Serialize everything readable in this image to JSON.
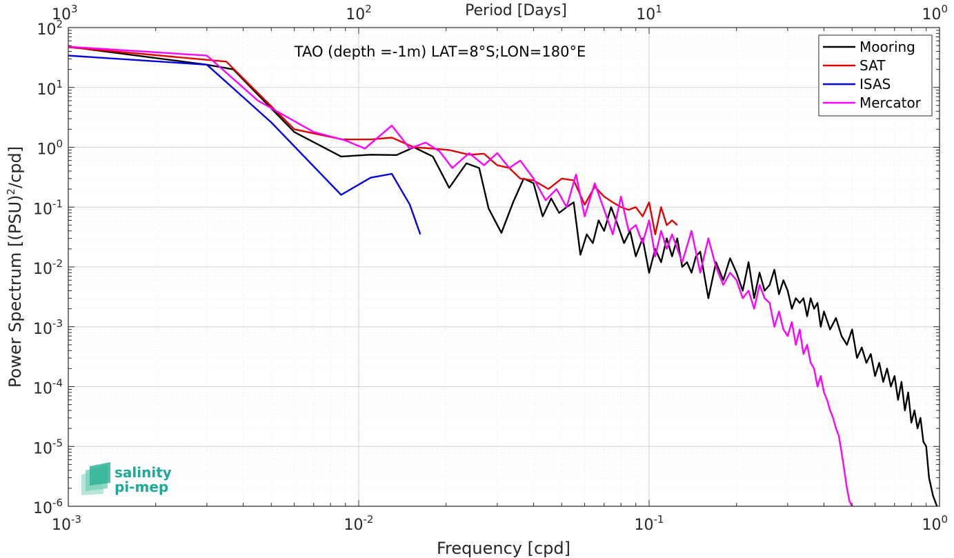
{
  "chart_data": {
    "type": "line",
    "x_scale": "log",
    "y_scale": "log",
    "xlim": [
      0.001,
      1
    ],
    "ylim": [
      1e-06,
      100
    ],
    "grid": true,
    "minor_grid": true,
    "xlabel": "Frequency [cpd]",
    "ylabel_main": "Power Spectrum [(PSU)",
    "ylabel_sup": "2",
    "ylabel_tail": "/cpd]",
    "top_axis_label": "Period [Days]",
    "annotation": "TAO (depth =-1m) LAT=8°S;LON=180°E",
    "legend_position": "top-right",
    "x_ticks": [
      {
        "value": 0.001,
        "base": "10",
        "exp": "-3"
      },
      {
        "value": 0.01,
        "base": "10",
        "exp": "-2"
      },
      {
        "value": 0.1,
        "base": "10",
        "exp": "-1"
      },
      {
        "value": 1,
        "base": "10",
        "exp": "0"
      }
    ],
    "top_ticks": [
      {
        "value": 0.001,
        "base": "10",
        "exp": "3"
      },
      {
        "value": 0.01,
        "base": "10",
        "exp": "2"
      },
      {
        "value": 0.1,
        "base": "10",
        "exp": "1"
      },
      {
        "value": 1,
        "base": "10",
        "exp": "0"
      }
    ],
    "y_ticks": [
      {
        "value": 1e-06,
        "base": "10",
        "exp": "-6"
      },
      {
        "value": 1e-05,
        "base": "10",
        "exp": "-5"
      },
      {
        "value": 0.0001,
        "base": "10",
        "exp": "-4"
      },
      {
        "value": 0.001,
        "base": "10",
        "exp": "-3"
      },
      {
        "value": 0.01,
        "base": "10",
        "exp": "-2"
      },
      {
        "value": 0.1,
        "base": "10",
        "exp": "-1"
      },
      {
        "value": 1,
        "base": "10",
        "exp": "0"
      },
      {
        "value": 10,
        "base": "10",
        "exp": "1"
      },
      {
        "value": 100,
        "base": "10",
        "exp": "2"
      }
    ],
    "series": [
      {
        "name": "Mooring",
        "color": "#000000",
        "x": [
          0.001,
          0.003,
          0.0037,
          0.006,
          0.0087,
          0.011,
          0.0135,
          0.0155,
          0.018,
          0.0205,
          0.0235,
          0.026,
          0.028,
          0.031,
          0.034,
          0.037,
          0.04,
          0.043,
          0.046,
          0.049,
          0.052,
          0.055,
          0.058,
          0.061,
          0.064,
          0.067,
          0.07,
          0.074,
          0.078,
          0.082,
          0.086,
          0.09,
          0.095,
          0.1,
          0.105,
          0.11,
          0.115,
          0.12,
          0.125,
          0.13,
          0.135,
          0.14,
          0.145,
          0.15,
          0.16,
          0.17,
          0.18,
          0.19,
          0.2,
          0.21,
          0.22,
          0.23,
          0.24,
          0.25,
          0.26,
          0.27,
          0.28,
          0.29,
          0.3,
          0.31,
          0.32,
          0.33,
          0.34,
          0.35,
          0.36,
          0.37,
          0.38,
          0.39,
          0.4,
          0.42,
          0.44,
          0.46,
          0.48,
          0.5,
          0.52,
          0.54,
          0.56,
          0.58,
          0.6,
          0.62,
          0.64,
          0.66,
          0.68,
          0.7,
          0.72,
          0.74,
          0.76,
          0.78,
          0.8,
          0.82,
          0.84,
          0.86,
          0.88,
          0.9,
          0.92,
          0.95,
          0.98
        ],
        "y": [
          48,
          24,
          20,
          1.8,
          0.7,
          0.75,
          0.74,
          1.0,
          0.7,
          0.21,
          0.54,
          0.45,
          0.095,
          0.037,
          0.12,
          0.3,
          0.25,
          0.07,
          0.14,
          0.08,
          0.1,
          0.12,
          0.016,
          0.035,
          0.025,
          0.06,
          0.04,
          0.1,
          0.05,
          0.025,
          0.04,
          0.015,
          0.03,
          0.008,
          0.02,
          0.012,
          0.03,
          0.015,
          0.03,
          0.01,
          0.012,
          0.008,
          0.015,
          0.018,
          0.003,
          0.012,
          0.006,
          0.014,
          0.008,
          0.004,
          0.012,
          0.003,
          0.008,
          0.004,
          0.005,
          0.009,
          0.0035,
          0.006,
          0.004,
          0.002,
          0.003,
          0.0025,
          0.003,
          0.0015,
          0.003,
          0.002,
          0.0025,
          0.001,
          0.0018,
          0.0009,
          0.0014,
          0.0007,
          0.0005,
          0.0009,
          0.0003,
          0.00045,
          0.00025,
          0.00035,
          0.00015,
          0.00025,
          0.00012,
          0.0002,
          0.0001,
          0.00015,
          6e-05,
          0.00012,
          4e-05,
          8e-05,
          2.5e-05,
          4e-05,
          2e-05,
          3e-05,
          1.2e-05,
          1e-05,
          3e-06,
          1.5e-06,
          1e-06
        ]
      },
      {
        "name": "SAT",
        "color": "#e00000",
        "x": [
          0.001,
          0.0035,
          0.006,
          0.0088,
          0.011,
          0.013,
          0.0155,
          0.018,
          0.0205,
          0.024,
          0.027,
          0.03,
          0.033,
          0.036,
          0.04,
          0.045,
          0.05,
          0.055,
          0.06,
          0.065,
          0.07,
          0.075,
          0.08,
          0.085,
          0.09,
          0.095,
          0.1,
          0.105,
          0.11,
          0.115,
          0.12,
          0.125
        ],
        "y": [
          47,
          27,
          2.0,
          1.35,
          1.35,
          1.45,
          1.0,
          0.95,
          0.9,
          0.75,
          0.78,
          0.5,
          0.45,
          0.3,
          0.28,
          0.2,
          0.3,
          0.28,
          0.11,
          0.22,
          0.15,
          0.12,
          0.1,
          0.09,
          0.1,
          0.07,
          0.12,
          0.035,
          0.1,
          0.05,
          0.06,
          0.05
        ]
      },
      {
        "name": "ISAS",
        "color": "#0000e0",
        "x": [
          0.001,
          0.003,
          0.005,
          0.0087,
          0.011,
          0.013,
          0.015,
          0.0163
        ],
        "y": [
          34,
          24,
          2.6,
          0.16,
          0.31,
          0.36,
          0.11,
          0.035
        ]
      },
      {
        "name": "Mercator",
        "color": "#ff00ff",
        "x": [
          0.001,
          0.003,
          0.0045,
          0.007,
          0.009,
          0.0105,
          0.013,
          0.015,
          0.017,
          0.019,
          0.021,
          0.024,
          0.027,
          0.03,
          0.033,
          0.036,
          0.04,
          0.044,
          0.048,
          0.052,
          0.056,
          0.06,
          0.065,
          0.07,
          0.075,
          0.08,
          0.085,
          0.09,
          0.095,
          0.1,
          0.105,
          0.11,
          0.115,
          0.12,
          0.13,
          0.14,
          0.15,
          0.16,
          0.17,
          0.18,
          0.19,
          0.2,
          0.21,
          0.22,
          0.23,
          0.24,
          0.25,
          0.26,
          0.27,
          0.28,
          0.29,
          0.3,
          0.31,
          0.32,
          0.33,
          0.34,
          0.35,
          0.36,
          0.37,
          0.38,
          0.39,
          0.4,
          0.41,
          0.42,
          0.43,
          0.44,
          0.45,
          0.46,
          0.47,
          0.48,
          0.49,
          0.5
        ],
        "y": [
          48,
          34,
          6,
          1.8,
          1.3,
          0.95,
          2.3,
          0.95,
          1.2,
          0.85,
          0.45,
          0.8,
          0.5,
          0.8,
          0.45,
          0.6,
          0.3,
          0.13,
          0.2,
          0.1,
          0.35,
          0.07,
          0.25,
          0.09,
          0.035,
          0.15,
          0.04,
          0.05,
          0.025,
          0.06,
          0.015,
          0.04,
          0.02,
          0.035,
          0.012,
          0.04,
          0.008,
          0.03,
          0.01,
          0.005,
          0.008,
          0.006,
          0.003,
          0.004,
          0.002,
          0.005,
          0.003,
          0.0025,
          0.001,
          0.0018,
          0.0009,
          0.0007,
          0.0012,
          0.0005,
          0.0009,
          0.00035,
          0.0005,
          0.00025,
          0.0002,
          0.0001,
          0.00015,
          8e-05,
          6e-05,
          4e-05,
          3e-05,
          2e-05,
          1.5e-05,
          8e-06,
          4e-06,
          2e-06,
          1.2e-06,
          1e-06
        ]
      }
    ]
  },
  "logo": {
    "line1": "salinity",
    "line2": "pi-mep"
  }
}
